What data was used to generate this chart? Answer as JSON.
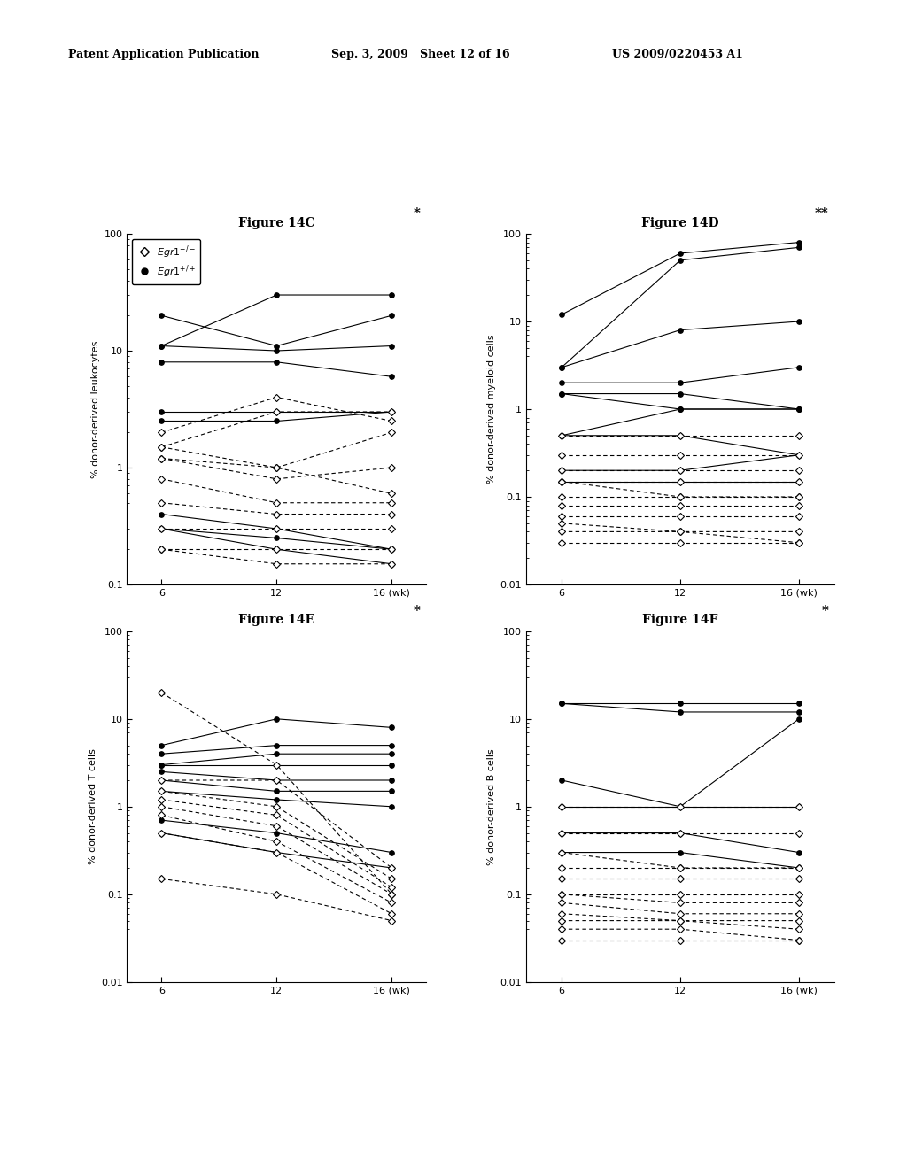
{
  "header_left": "Patent Application Publication",
  "header_mid": "Sep. 3, 2009   Sheet 12 of 16",
  "header_right": "US 2009/0220453 A1",
  "figures": [
    {
      "title": "Figure 14C",
      "ylabel": "% donor-derived leukocytes",
      "ylim": [
        0.1,
        100
      ],
      "yticks": [
        0.1,
        1,
        10,
        100
      ],
      "ytick_labels": [
        "0.1",
        "1",
        "10",
        "100"
      ],
      "sig": "*",
      "solid_lines": [
        [
          11,
          30,
          30
        ],
        [
          20,
          11,
          20
        ],
        [
          11,
          10,
          11
        ],
        [
          8,
          8,
          6
        ],
        [
          3,
          3,
          3
        ],
        [
          2.5,
          2.5,
          3
        ],
        [
          0.4,
          0.3,
          0.2
        ],
        [
          0.3,
          0.25,
          0.2
        ],
        [
          0.3,
          0.2,
          0.15
        ]
      ],
      "dashed_lines": [
        [
          2,
          4,
          2.5
        ],
        [
          1.5,
          3,
          3
        ],
        [
          1.5,
          1,
          2
        ],
        [
          1.2,
          0.8,
          1
        ],
        [
          1.2,
          1,
          0.6
        ],
        [
          0.8,
          0.5,
          0.5
        ],
        [
          0.5,
          0.4,
          0.4
        ],
        [
          0.3,
          0.3,
          0.3
        ],
        [
          0.2,
          0.2,
          0.2
        ],
        [
          0.2,
          0.15,
          0.15
        ]
      ]
    },
    {
      "title": "Figure 14D",
      "ylabel": "% donor-derived myeloid cells",
      "ylim": [
        0.01,
        100
      ],
      "yticks": [
        0.01,
        0.1,
        1,
        10,
        100
      ],
      "ytick_labels": [
        "0.01",
        "0.1",
        "1",
        "10",
        "100"
      ],
      "sig": "**",
      "solid_lines": [
        [
          12,
          60,
          80
        ],
        [
          3,
          50,
          70
        ],
        [
          3,
          8,
          10
        ],
        [
          2,
          2,
          3
        ],
        [
          1.5,
          1.5,
          1
        ],
        [
          1.5,
          1,
          1
        ],
        [
          0.5,
          1,
          1
        ],
        [
          0.5,
          0.5,
          0.3
        ],
        [
          0.2,
          0.2,
          0.3
        ],
        [
          0.15,
          0.15,
          0.15
        ]
      ],
      "dashed_lines": [
        [
          0.5,
          0.5,
          0.5
        ],
        [
          0.3,
          0.3,
          0.3
        ],
        [
          0.2,
          0.2,
          0.2
        ],
        [
          0.15,
          0.15,
          0.15
        ],
        [
          0.15,
          0.1,
          0.1
        ],
        [
          0.1,
          0.1,
          0.1
        ],
        [
          0.08,
          0.08,
          0.08
        ],
        [
          0.06,
          0.06,
          0.06
        ],
        [
          0.05,
          0.04,
          0.04
        ],
        [
          0.04,
          0.04,
          0.03
        ],
        [
          0.03,
          0.03,
          0.03
        ]
      ]
    },
    {
      "title": "Figure 14E",
      "ylabel": "% donor-derived T cells",
      "ylim": [
        0.01,
        100
      ],
      "yticks": [
        0.01,
        0.1,
        1,
        10,
        100
      ],
      "ytick_labels": [
        "0.01",
        "0.1",
        "1",
        "10",
        "100"
      ],
      "sig": "*",
      "solid_lines": [
        [
          5,
          10,
          8
        ],
        [
          4,
          5,
          5
        ],
        [
          3,
          4,
          4
        ],
        [
          3,
          3,
          3
        ],
        [
          2.5,
          2,
          2
        ],
        [
          2,
          1.5,
          1.5
        ],
        [
          1.5,
          1.2,
          1
        ],
        [
          0.7,
          0.5,
          0.3
        ],
        [
          0.5,
          0.3,
          0.2
        ]
      ],
      "dashed_lines": [
        [
          20,
          3,
          0.1
        ],
        [
          2,
          2,
          0.2
        ],
        [
          1.5,
          1,
          0.15
        ],
        [
          1.2,
          0.8,
          0.12
        ],
        [
          1,
          0.6,
          0.1
        ],
        [
          0.8,
          0.4,
          0.08
        ],
        [
          0.5,
          0.3,
          0.06
        ],
        [
          0.15,
          0.1,
          0.05
        ]
      ]
    },
    {
      "title": "Figure 14F",
      "ylabel": "% donor-derived B cells",
      "ylim": [
        0.01,
        100
      ],
      "yticks": [
        0.01,
        0.1,
        1,
        10,
        100
      ],
      "ytick_labels": [
        "0.01",
        "0.1",
        "1",
        "10",
        "100"
      ],
      "sig": "*",
      "solid_lines": [
        [
          15,
          15,
          15
        ],
        [
          15,
          12,
          12
        ],
        [
          2,
          1,
          10
        ],
        [
          1,
          1,
          1
        ],
        [
          0.5,
          0.5,
          0.3
        ],
        [
          0.3,
          0.3,
          0.2
        ]
      ],
      "dashed_lines": [
        [
          1,
          1,
          1
        ],
        [
          0.5,
          0.5,
          0.5
        ],
        [
          0.3,
          0.2,
          0.2
        ],
        [
          0.2,
          0.2,
          0.2
        ],
        [
          0.15,
          0.15,
          0.15
        ],
        [
          0.1,
          0.1,
          0.1
        ],
        [
          0.1,
          0.08,
          0.08
        ],
        [
          0.08,
          0.06,
          0.06
        ],
        [
          0.06,
          0.05,
          0.05
        ],
        [
          0.05,
          0.05,
          0.04
        ],
        [
          0.04,
          0.04,
          0.03
        ],
        [
          0.03,
          0.03,
          0.03
        ]
      ]
    }
  ],
  "xticklabels": [
    "6",
    "12",
    "16 (wk)"
  ],
  "xticks": [
    0,
    1,
    2
  ],
  "bg_color": "#ffffff",
  "line_color": "#000000"
}
